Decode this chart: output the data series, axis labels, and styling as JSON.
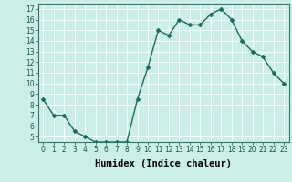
{
  "x": [
    0,
    1,
    2,
    3,
    4,
    5,
    6,
    7,
    8,
    9,
    10,
    11,
    12,
    13,
    14,
    15,
    16,
    17,
    18,
    19,
    20,
    21,
    22,
    23
  ],
  "y": [
    8.5,
    7.0,
    7.0,
    5.5,
    5.0,
    4.5,
    4.5,
    4.5,
    4.5,
    8.5,
    11.5,
    15.0,
    14.5,
    16.0,
    15.5,
    15.5,
    16.5,
    17.0,
    16.0,
    14.0,
    13.0,
    12.5,
    11.0,
    10.0
  ],
  "xlabel": "Humidex (Indice chaleur)",
  "ylim": [
    4.5,
    17.5
  ],
  "xlim": [
    -0.5,
    23.5
  ],
  "yticks": [
    5,
    6,
    7,
    8,
    9,
    10,
    11,
    12,
    13,
    14,
    15,
    16,
    17
  ],
  "xticks": [
    0,
    1,
    2,
    3,
    4,
    5,
    6,
    7,
    8,
    9,
    10,
    11,
    12,
    13,
    14,
    15,
    16,
    17,
    18,
    19,
    20,
    21,
    22,
    23
  ],
  "line_color": "#1a6b5a",
  "marker_color": "#1a6b5a",
  "bg_color": "#cceee8",
  "grid_color": "#ffffff",
  "tick_fontsize": 5.5,
  "xlabel_fontsize": 7.5,
  "line_width": 1.0,
  "marker_size": 2.5
}
